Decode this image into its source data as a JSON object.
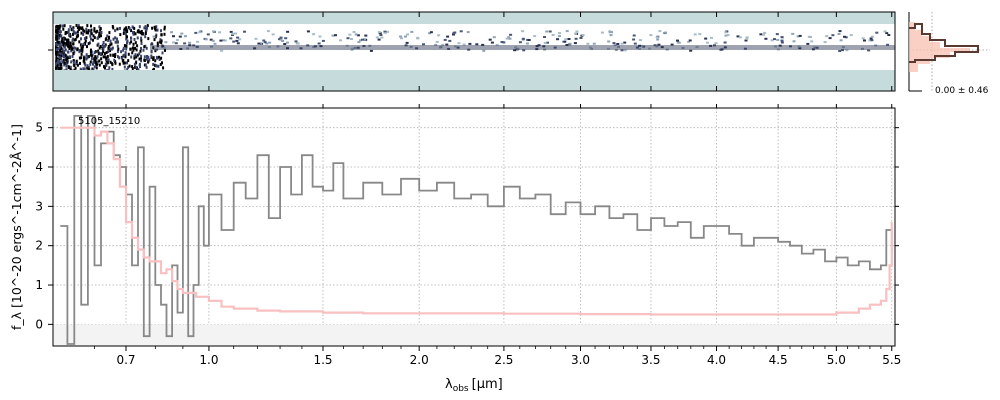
{
  "chart_data": [
    {
      "type": "heatmap",
      "description_role": "2D spectrum cutout",
      "colors": {
        "background": "#c6dcdc",
        "trace": "#2a3250",
        "noise": "#000000"
      }
    },
    {
      "type": "line",
      "description_role": "cross-dispersion profile",
      "label": "0.00 ± 0.46",
      "colors": {
        "fill": "#f8c0b0",
        "line": "#5a3a30",
        "accent": "#d04020"
      }
    },
    {
      "type": "line",
      "label": "5105_15210",
      "xlabel_main": "λ",
      "xlabel_sub": "obs",
      "xlabel_unit": "[μm]",
      "ylabel": "f_λ [10^-20 ergs^-1cm^-2Å^-1]",
      "ylim": [
        -0.55,
        5.5
      ],
      "x_scale": "sqrt",
      "xlim": [
        0.48,
        5.53
      ],
      "xticks": [
        0.7,
        1.0,
        1.5,
        2.0,
        2.5,
        3.0,
        3.5,
        4.0,
        4.5,
        5.0,
        5.5
      ],
      "xtick_labels": [
        "0.7",
        "1.0",
        "1.5",
        "2.0",
        "2.5",
        "3.0",
        "3.5",
        "4.0",
        "4.5",
        "5.0",
        "5.5"
      ],
      "yticks": [
        0,
        1,
        2,
        3,
        4,
        5
      ],
      "grid": true,
      "series": [
        {
          "role": "flux",
          "color": "#888888",
          "x": [
            0.5,
            0.52,
            0.54,
            0.56,
            0.58,
            0.6,
            0.62,
            0.64,
            0.66,
            0.68,
            0.7,
            0.72,
            0.74,
            0.76,
            0.78,
            0.8,
            0.82,
            0.84,
            0.86,
            0.88,
            0.9,
            0.92,
            0.94,
            0.96,
            0.98,
            1.0,
            1.05,
            1.1,
            1.15,
            1.2,
            1.25,
            1.3,
            1.35,
            1.4,
            1.45,
            1.5,
            1.55,
            1.6,
            1.7,
            1.8,
            1.9,
            2.0,
            2.1,
            2.2,
            2.3,
            2.4,
            2.5,
            2.6,
            2.7,
            2.8,
            2.9,
            3.0,
            3.1,
            3.2,
            3.3,
            3.4,
            3.5,
            3.6,
            3.7,
            3.8,
            3.9,
            4.0,
            4.1,
            4.2,
            4.3,
            4.4,
            4.5,
            4.6,
            4.7,
            4.8,
            4.9,
            5.0,
            5.1,
            5.2,
            5.3,
            5.4,
            5.45,
            5.5
          ],
          "y": [
            2.5,
            -0.5,
            5.3,
            0.5,
            5.3,
            1.5,
            4.6,
            4.9,
            4.3,
            4.0,
            3.3,
            1.5,
            4.5,
            -0.3,
            3.5,
            1.0,
            0.5,
            -0.3,
            1.5,
            0.3,
            4.5,
            -0.3,
            1.0,
            3.0,
            2.0,
            3.3,
            2.4,
            3.6,
            3.2,
            4.3,
            2.7,
            4.0,
            3.3,
            4.3,
            3.5,
            3.4,
            4.1,
            3.2,
            3.6,
            3.3,
            3.7,
            3.4,
            3.6,
            3.2,
            3.3,
            3.0,
            3.5,
            3.2,
            3.3,
            2.8,
            3.1,
            2.8,
            3.0,
            2.7,
            2.8,
            2.4,
            2.7,
            2.5,
            2.6,
            2.2,
            2.5,
            2.5,
            2.3,
            2.0,
            2.2,
            2.2,
            2.1,
            2.0,
            1.8,
            1.9,
            1.6,
            1.7,
            1.5,
            1.6,
            1.4,
            1.5,
            2.4,
            1.8
          ]
        },
        {
          "role": "error",
          "color": "#f8c0c0",
          "x": [
            0.5,
            0.55,
            0.6,
            0.62,
            0.64,
            0.66,
            0.68,
            0.7,
            0.72,
            0.74,
            0.76,
            0.78,
            0.8,
            0.82,
            0.84,
            0.86,
            0.88,
            0.9,
            0.95,
            1.0,
            1.05,
            1.1,
            1.2,
            1.3,
            1.5,
            1.7,
            2.0,
            2.5,
            3.0,
            3.5,
            4.0,
            4.5,
            5.0,
            5.2,
            5.3,
            5.4,
            5.45,
            5.48,
            5.5
          ],
          "y": [
            5.0,
            5.0,
            4.8,
            4.9,
            4.6,
            4.2,
            3.5,
            2.6,
            2.2,
            1.9,
            1.7,
            1.6,
            1.6,
            1.3,
            1.4,
            1.1,
            0.9,
            0.8,
            0.7,
            0.6,
            0.45,
            0.4,
            0.35,
            0.33,
            0.3,
            0.28,
            0.28,
            0.27,
            0.26,
            0.25,
            0.25,
            0.25,
            0.3,
            0.4,
            0.5,
            0.6,
            0.9,
            1.5,
            2.6
          ]
        }
      ]
    }
  ]
}
